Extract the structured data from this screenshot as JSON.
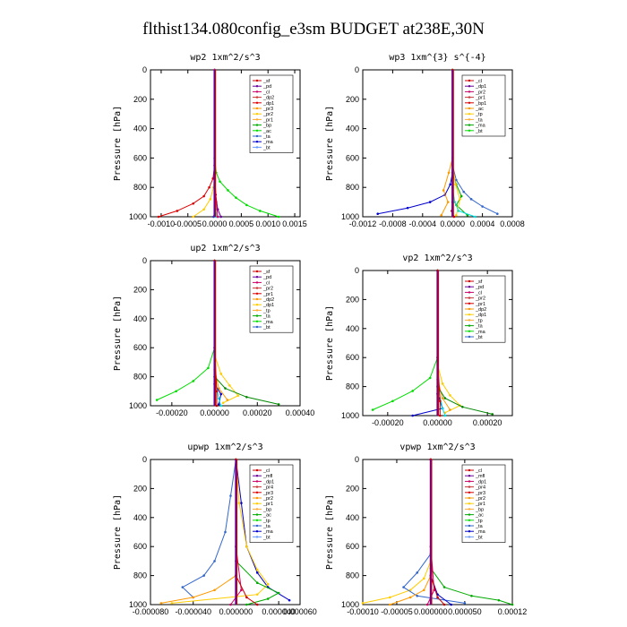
{
  "figure": {
    "title": "flthist134.080config_e3sm  BUDGET at238E,30N"
  },
  "chart_data": [
    {
      "type": "line",
      "title": "wp2  1xm^2/s^3",
      "ylabel": "Pressure [hPa]",
      "xlim": [
        -0.0012,
        0.0016
      ],
      "ylim": [
        1000,
        0
      ],
      "xticks": [
        "-0.0010",
        "-0.0005",
        "0.0000",
        "0.0005",
        "0.0010",
        "0.0015"
      ],
      "xtick_values": [
        -0.001,
        -0.0005,
        0,
        0.0005,
        0.001,
        0.0015
      ],
      "yticks": [
        0,
        200,
        400,
        600,
        800,
        1000
      ],
      "legend": [
        "_sf",
        "_pd",
        "_cl",
        "_dp2",
        "_dp1",
        "_pr3",
        "_pr2",
        "_pr1",
        "_bp",
        "_ac",
        "_ta",
        "_ma",
        "_bt"
      ],
      "series": [
        {
          "name": "_pr1",
          "color": "#00dd00",
          "x": [
            0,
            0,
            3e-05,
            0.0001,
            0.00025,
            0.0004,
            0.0006,
            0.00085,
            0.0012
          ],
          "y": [
            0,
            600,
            700,
            760,
            820,
            870,
            920,
            960,
            1000
          ]
        },
        {
          "name": "_dp1",
          "color": "#dd0000",
          "x": [
            0,
            0,
            -3e-05,
            -0.0001,
            -0.0002,
            -0.0004,
            -0.0007,
            -0.00105
          ],
          "y": [
            0,
            650,
            740,
            800,
            860,
            910,
            960,
            1000
          ]
        },
        {
          "name": "_pr3",
          "color": "#ffcc00",
          "x": [
            0,
            0,
            -2e-05,
            -8e-05,
            -0.0002,
            -0.0004
          ],
          "y": [
            0,
            700,
            800,
            880,
            950,
            1000
          ]
        },
        {
          "name": "_pd",
          "color": "#660099",
          "x": [
            0,
            0,
            2e-05,
            6e-05,
            0.00012
          ],
          "y": [
            0,
            700,
            850,
            950,
            1000
          ]
        },
        {
          "name": "_sf",
          "color": "#3333cc",
          "x": [
            0,
            0,
            1e-05,
            -2e-05
          ],
          "y": [
            0,
            800,
            950,
            1000
          ]
        },
        {
          "name": "_bt",
          "color": "#00dddd",
          "x": [
            0,
            0,
            2e-05,
            4e-05
          ],
          "y": [
            0,
            800,
            950,
            1000
          ]
        },
        {
          "name": "_cl",
          "color": "#cc0066",
          "x": [
            0,
            0,
            3e-05,
            6e-05
          ],
          "y": [
            0,
            700,
            900,
            1000
          ]
        }
      ]
    },
    {
      "type": "line",
      "title": "wp3  1xm^{3} s^{-4}",
      "ylabel": "Pressure [hPa]",
      "xlim": [
        -0.0012,
        0.0008
      ],
      "ylim": [
        1000,
        0
      ],
      "xticks": [
        "-0.0012",
        "-0.0008",
        "-0.0004",
        "0.0000",
        "0.0004",
        "0.0008"
      ],
      "xtick_values": [
        -0.0012,
        -0.0008,
        -0.0004,
        0,
        0.0004,
        0.0008
      ],
      "yticks": [
        0,
        200,
        400,
        600,
        800,
        1000
      ],
      "legend": [
        "_cl",
        "_dp1",
        "_pr2",
        "_pr1",
        "_bp1",
        "_ac",
        "_tp",
        "_ta",
        "_ma",
        "_bt"
      ],
      "series": [
        {
          "name": "_ta",
          "color": "#0000cc",
          "x": [
            0,
            0,
            -3e-05,
            -0.0001,
            -0.0003,
            -0.0006,
            -0.001
          ],
          "y": [
            0,
            700,
            780,
            850,
            900,
            940,
            980
          ]
        },
        {
          "name": "_tp",
          "color": "#3366cc",
          "x": [
            0,
            0,
            5e-05,
            0.00015,
            0.00025,
            0.0004,
            0.0006
          ],
          "y": [
            0,
            650,
            750,
            830,
            880,
            930,
            980
          ]
        },
        {
          "name": "_ac",
          "color": "#00aa00",
          "x": [
            0,
            0,
            5e-05,
            0.00012,
            5e-05,
            0.0002
          ],
          "y": [
            0,
            700,
            780,
            860,
            920,
            990
          ]
        },
        {
          "name": "_pr1",
          "color": "#ff9900",
          "x": [
            0,
            0,
            -5e-05,
            -0.00012,
            -6e-05,
            -0.00015
          ],
          "y": [
            0,
            600,
            700,
            820,
            900,
            990
          ]
        },
        {
          "name": "_pr2",
          "color": "#ffcc00",
          "x": [
            0,
            0,
            4e-05,
            0.0001,
            5e-05
          ],
          "y": [
            0,
            650,
            780,
            880,
            990
          ]
        },
        {
          "name": "_bt",
          "color": "#00dddd",
          "x": [
            0,
            0,
            3e-05,
            8e-05,
            0.0003
          ],
          "y": [
            0,
            800,
            900,
            960,
            1000
          ]
        },
        {
          "name": "_cl",
          "color": "#cc0000",
          "x": [
            0,
            0,
            -1e-05,
            2e-05
          ],
          "y": [
            0,
            900,
            960,
            1000
          ]
        }
      ]
    },
    {
      "type": "line",
      "title": "up2  1xm^2/s^3",
      "ylabel": "Pressure [hPa]",
      "xlim": [
        -0.0003,
        0.0004
      ],
      "ylim": [
        1000,
        0
      ],
      "xticks": [
        "-0.00020",
        "0.00000",
        "0.00020",
        "0.00040"
      ],
      "xtick_values": [
        -0.0002,
        0,
        0.0002,
        0.0004
      ],
      "yticks": [
        0,
        200,
        400,
        600,
        800,
        1000
      ],
      "legend": [
        "_sf",
        "_pd",
        "_cl",
        "_pr2",
        "_pr1",
        "_dp2",
        "_dp1",
        "_tp",
        "_ta",
        "_ma",
        "_bt"
      ],
      "series": [
        {
          "name": "_dp1",
          "color": "#00dd00",
          "x": [
            0,
            0,
            -3e-05,
            -0.0001,
            -0.00018,
            -0.00027
          ],
          "y": [
            0,
            600,
            740,
            830,
            900,
            960
          ]
        },
        {
          "name": "_pr1",
          "color": "#ffcc00",
          "x": [
            0,
            0,
            3e-05,
            7e-05,
            0.00011,
            4e-05
          ],
          "y": [
            0,
            650,
            780,
            860,
            930,
            980
          ]
        },
        {
          "name": "_pr2",
          "color": "#ff9900",
          "x": [
            0,
            0,
            2e-05,
            6e-05
          ],
          "y": [
            0,
            750,
            880,
            960
          ]
        },
        {
          "name": "_dp2",
          "color": "#008800",
          "x": [
            0,
            0,
            5e-05,
            0.00015,
            0.0003
          ],
          "y": [
            0,
            800,
            880,
            940,
            990
          ]
        },
        {
          "name": "_tp",
          "color": "#0000cc",
          "x": [
            0,
            0,
            3e-05,
            2e-05
          ],
          "y": [
            0,
            850,
            920,
            990
          ]
        },
        {
          "name": "_bt",
          "color": "#00dddd",
          "x": [
            0,
            0,
            2e-05,
            3e-05
          ],
          "y": [
            0,
            800,
            950,
            1000
          ]
        },
        {
          "name": "_cl",
          "color": "#cc0000",
          "x": [
            0,
            0,
            1e-05,
            1e-05
          ],
          "y": [
            0,
            600,
            900,
            1000
          ]
        }
      ]
    },
    {
      "type": "line",
      "title": "vp2  1xm^2/s^3",
      "ylabel": "Pressure [hPa]",
      "xlim": [
        -0.0003,
        0.0003
      ],
      "ylim": [
        1000,
        0
      ],
      "xticks": [
        "-0.00020",
        "0.00000",
        "0.00020"
      ],
      "xtick_values": [
        -0.0002,
        0,
        0.0002
      ],
      "yticks": [
        0,
        200,
        400,
        600,
        800,
        1000
      ],
      "legend": [
        "_sf",
        "_pd",
        "_cl",
        "_pr2",
        "_pr1",
        "_dp2",
        "_dp1",
        "_tp",
        "_ta",
        "_ma",
        "_bt"
      ],
      "series": [
        {
          "name": "_dp1",
          "color": "#00dd00",
          "x": [
            0,
            0,
            -3e-05,
            -0.0001,
            -0.00018,
            -0.00026
          ],
          "y": [
            0,
            600,
            740,
            830,
            900,
            960
          ]
        },
        {
          "name": "_pr1",
          "color": "#ffcc00",
          "x": [
            0,
            0,
            2e-05,
            5e-05,
            9e-05,
            3e-05
          ],
          "y": [
            0,
            650,
            780,
            860,
            930,
            980
          ]
        },
        {
          "name": "_pr2",
          "color": "#ff9900",
          "x": [
            0,
            0,
            2e-05,
            5e-05
          ],
          "y": [
            0,
            750,
            880,
            960
          ]
        },
        {
          "name": "_dp2",
          "color": "#008800",
          "x": [
            0,
            0,
            3e-05,
            0.0001,
            0.00022
          ],
          "y": [
            0,
            800,
            880,
            940,
            990
          ]
        },
        {
          "name": "_ta",
          "color": "#0000cc",
          "x": [
            0,
            0,
            2e-05,
            -0.0001
          ],
          "y": [
            0,
            850,
            950,
            1000
          ]
        },
        {
          "name": "_bt",
          "color": "#00dddd",
          "x": [
            0,
            0,
            2e-05,
            3e-05
          ],
          "y": [
            0,
            800,
            950,
            1000
          ]
        },
        {
          "name": "_cl",
          "color": "#cc0000",
          "x": [
            0,
            0,
            1e-05,
            1e-05
          ],
          "y": [
            0,
            600,
            900,
            1000
          ]
        }
      ]
    },
    {
      "type": "line",
      "title": "upwp  1xm^2/s^3",
      "ylabel": "Pressure [hPa]",
      "xlim": [
        -8e-05,
        6e-05
      ],
      "ylim": [
        1000,
        0
      ],
      "xticks": [
        "-0.000080",
        "-0.000040",
        "0.000000",
        "0.000040",
        "0.000060"
      ],
      "xtick_values": [
        -8e-05,
        -4e-05,
        0,
        4e-05,
        6e-05
      ],
      "yticks": [
        0,
        200,
        400,
        600,
        800,
        1000
      ],
      "legend": [
        "_cl",
        "_mfl",
        "_dp1",
        "_pr4",
        "_pr3",
        "_pr2",
        "_pr1",
        "_bp",
        "_ac",
        "_tp",
        "_ta",
        "_ma",
        "_bt"
      ],
      "series": [
        {
          "name": "_tp",
          "color": "#3366cc",
          "x": [
            0,
            -5e-06,
            -1e-05,
            -2e-05,
            -3e-05,
            -5e-05,
            -4e-05
          ],
          "y": [
            0,
            250,
            500,
            700,
            800,
            880,
            950
          ]
        },
        {
          "name": "_ta",
          "color": "#0000cc",
          "x": [
            0,
            5e-06,
            1e-05,
            2e-05,
            3e-05,
            5e-05
          ],
          "y": [
            0,
            300,
            600,
            780,
            880,
            970
          ]
        },
        {
          "name": "_pr1",
          "color": "#ffcc00",
          "x": [
            0,
            3e-06,
            1e-05,
            2e-05,
            3e-05,
            2e-05,
            -6e-05
          ],
          "y": [
            0,
            300,
            600,
            760,
            860,
            930,
            990
          ]
        },
        {
          "name": "_ac",
          "color": "#00aa00",
          "x": [
            0,
            0,
            2e-05,
            4e-05,
            3e-05,
            1e-05
          ],
          "y": [
            0,
            700,
            850,
            920,
            960,
            1000
          ]
        },
        {
          "name": "_pr2",
          "color": "#ff9900",
          "x": [
            0,
            0,
            -2e-05,
            -4e-05,
            -7e-05
          ],
          "y": [
            0,
            800,
            900,
            950,
            990
          ]
        },
        {
          "name": "_cl",
          "color": "#cc0066",
          "x": [
            0,
            0,
            5e-06,
            -5e-06
          ],
          "y": [
            0,
            600,
            900,
            1000
          ]
        },
        {
          "name": "_dp1",
          "color": "#cc0000",
          "x": [
            0,
            0,
            1e-05,
            2e-05
          ],
          "y": [
            0,
            800,
            950,
            1000
          ]
        }
      ]
    },
    {
      "type": "line",
      "title": "vpwp  1xm^2/s^3",
      "ylabel": "Pressure [hPa]",
      "xlim": [
        -0.0001,
        0.00012
      ],
      "ylim": [
        1000,
        0
      ],
      "xticks": [
        "-0.00010",
        "-0.00005",
        "0.000000",
        "0.000050",
        "0.00012"
      ],
      "xtick_values": [
        -0.0001,
        -5e-05,
        0,
        5e-05,
        0.00012
      ],
      "yticks": [
        0,
        200,
        400,
        600,
        800,
        1000
      ],
      "legend": [
        "_cl",
        "_mfl",
        "_dp1",
        "_pr4",
        "_pr3",
        "_pr2",
        "_pr1",
        "_bp",
        "_ac",
        "_tp",
        "_ta",
        "_ma",
        "_bt"
      ],
      "series": [
        {
          "name": "_pr1",
          "color": "#ffcc00",
          "x": [
            0,
            0,
            -1e-05,
            -3e-05,
            -6e-05,
            -0.0001
          ],
          "y": [
            0,
            700,
            820,
            900,
            950,
            990
          ]
        },
        {
          "name": "_ac",
          "color": "#00aa00",
          "x": [
            0,
            0,
            2e-05,
            6e-05,
            0.0001,
            0.00012
          ],
          "y": [
            0,
            750,
            880,
            940,
            970,
            1000
          ]
        },
        {
          "name": "_tp",
          "color": "#3366cc",
          "x": [
            0,
            0,
            -2e-05,
            -4e-05,
            -2e-05,
            5e-05
          ],
          "y": [
            0,
            650,
            780,
            880,
            940,
            990
          ]
        },
        {
          "name": "_pr2",
          "color": "#ff9900",
          "x": [
            0,
            0,
            -1e-05,
            -3e-05,
            -6e-05
          ],
          "y": [
            0,
            800,
            900,
            950,
            1000
          ]
        },
        {
          "name": "_ta",
          "color": "#0000cc",
          "x": [
            0,
            0,
            1e-05,
            3e-05
          ],
          "y": [
            0,
            800,
            930,
            1000
          ]
        },
        {
          "name": "_cl",
          "color": "#cc0066",
          "x": [
            0,
            0,
            5e-06,
            -5e-06
          ],
          "y": [
            0,
            600,
            900,
            1000
          ]
        },
        {
          "name": "_dp1",
          "color": "#cc0000",
          "x": [
            0,
            0,
            1e-05,
            2e-05
          ],
          "y": [
            0,
            800,
            950,
            1000
          ]
        }
      ]
    }
  ]
}
